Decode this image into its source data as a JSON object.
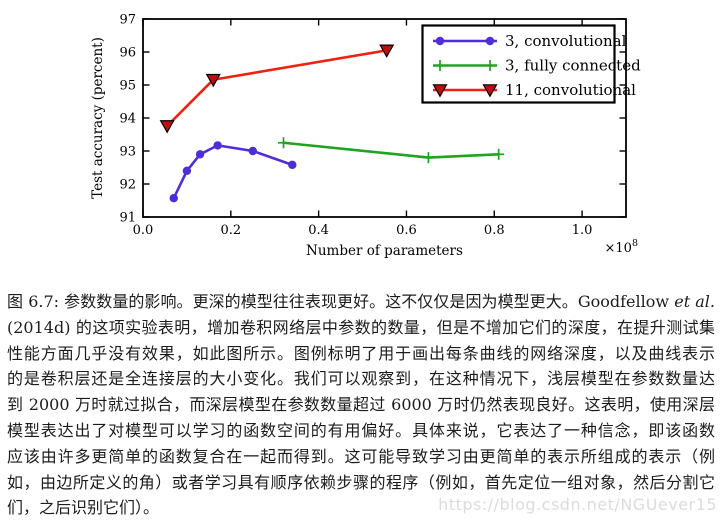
{
  "watermark": {
    "text": "https://blog.csdn.net/NGUever15",
    "color": "#dcdcdc"
  },
  "caption": {
    "line1": {
      "text": "图 6.7: 参数数量的影响。更深的模型往往表现更好。这不仅仅是因为模型更大。Goodfellow ",
      "italic": "et al."
    },
    "lines": [
      "(2014d) 的这项实验表明，增加卷积网络层中参数的数量，但是不增加它们的深度，在提升测试集",
      "性能方面几乎没有效果，如此图所示。图例标明了用于画出每条曲线的网络深度，以及曲线表示",
      "的是卷积层还是全连接层的大小变化。我们可以观察到，在这种情况下，浅层模型在参数数量达",
      "到 2000 万时就过拟合，而深层模型在参数数量超过 6000 万时仍然表现良好。这表明，使用深层",
      "模型表达出了对模型可以学习的函数空间的有用偏好。具体来说，它表达了一种信念，即该函数",
      "应该由许多更简单的函数复合在一起而得到。这可能导致学习由更简单的表示所组成的表示（例",
      "如，由边所定义的角）或者学习具有顺序依赖步骤的程序（例如，首先定位一组对象，然后分割它",
      "们，之后识别它们）。"
    ]
  },
  "chart_data": {
    "type": "line",
    "title": "",
    "xlabel": "Number of parameters",
    "ylabel": "Test accuracy (percent)",
    "x_scale_label": {
      "base": "×10",
      "exp": "8"
    },
    "xlim": [
      0.0,
      1.1
    ],
    "ylim": [
      91,
      97
    ],
    "xticks": [
      0.0,
      0.2,
      0.4,
      0.6,
      0.8,
      1.0
    ],
    "yticks": [
      91,
      92,
      93,
      94,
      95,
      96,
      97
    ],
    "grid": false,
    "legend_position": "upper right",
    "axis_color": "#000000",
    "series": [
      {
        "name": "3, convolutional",
        "color": "#4f2dd9",
        "marker": "circle",
        "x": [
          0.07,
          0.1,
          0.13,
          0.17,
          0.25,
          0.34
        ],
        "y": [
          91.57,
          92.4,
          92.9,
          93.17,
          93.0,
          92.58
        ]
      },
      {
        "name": "3, fully connected",
        "color": "#20a320",
        "marker": "plus",
        "x": [
          0.32,
          0.65,
          0.81
        ],
        "y": [
          93.25,
          92.8,
          92.9
        ]
      },
      {
        "name": "11, convolutional",
        "color": "#ee2211",
        "marker": "triangle-down",
        "marker_fill": "#c00d0d",
        "x": [
          0.055,
          0.16,
          0.555
        ],
        "y": [
          93.76,
          95.16,
          96.05
        ]
      }
    ]
  }
}
